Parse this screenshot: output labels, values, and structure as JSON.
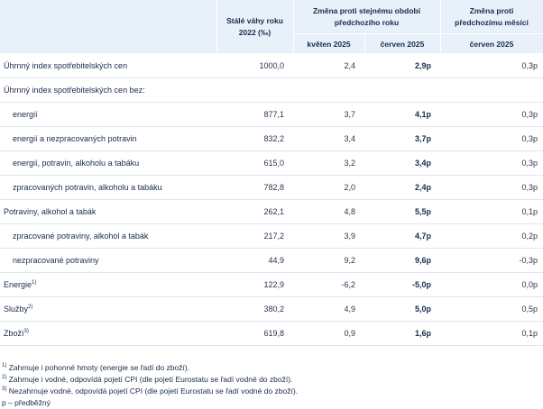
{
  "header": {
    "col_weights": "Stálé váhy roku 2022 (‰)",
    "group_year": "Změna proti stejnému období předchozího roku",
    "group_month": "Změna proti předchozímu měsíci",
    "sub_may": "květen 2025",
    "sub_june_y": "červen 2025",
    "sub_june_m": "červen 2025"
  },
  "rows": [
    {
      "label": "Úhrnný index spotřebitelských cen",
      "sup": "",
      "indent": false,
      "weight": "1000,0",
      "may": "2,4",
      "june": "2,9p",
      "mom": "0,3p"
    },
    {
      "label": "Úhrnný index spotřebitelských cen bez:",
      "sup": "",
      "indent": false,
      "weight": "",
      "may": "",
      "june": "",
      "mom": ""
    },
    {
      "label": "energií",
      "sup": "",
      "indent": true,
      "weight": "877,1",
      "may": "3,7",
      "june": "4,1p",
      "mom": "0,3p"
    },
    {
      "label": "energií a nezpracovaných potravin",
      "sup": "",
      "indent": true,
      "weight": "832,2",
      "may": "3,4",
      "june": "3,7p",
      "mom": "0,3p"
    },
    {
      "label": "energií, potravin, alkoholu a tabáku",
      "sup": "",
      "indent": true,
      "weight": "615,0",
      "may": "3,2",
      "june": "3,4p",
      "mom": "0,3p"
    },
    {
      "label": "zpracovaných potravin, alkoholu a tabáku",
      "sup": "",
      "indent": true,
      "weight": "782,8",
      "may": "2,0",
      "june": "2,4p",
      "mom": "0,3p"
    },
    {
      "label": "Potraviny, alkohol a tabák",
      "sup": "",
      "indent": false,
      "weight": "262,1",
      "may": "4,8",
      "june": "5,5p",
      "mom": "0,1p"
    },
    {
      "label": "zpracované potraviny, alkohol a tabák",
      "sup": "",
      "indent": true,
      "weight": "217,2",
      "may": "3,9",
      "june": "4,7p",
      "mom": "0,2p"
    },
    {
      "label": "nezpracované potraviny",
      "sup": "",
      "indent": true,
      "weight": "44,9",
      "may": "9,2",
      "june": "9,6p",
      "mom": "-0,3p"
    },
    {
      "label": "Energie",
      "sup": "1)",
      "indent": false,
      "weight": "122,9",
      "may": "-6,2",
      "june": "-5,0p",
      "mom": "0,0p"
    },
    {
      "label": "Služby",
      "sup": "2)",
      "indent": false,
      "weight": "380,2",
      "may": "4,9",
      "june": "5,0p",
      "mom": "0,5p"
    },
    {
      "label": "Zboží",
      "sup": "3)",
      "indent": false,
      "weight": "619,8",
      "may": "0,9",
      "june": "1,6p",
      "mom": "0,1p"
    }
  ],
  "notes": [
    {
      "sup": "1)",
      "text": " Zahrnuje i pohonné hmoty (energie se řadí do zboží)."
    },
    {
      "sup": "2)",
      "text": " Zahrnuje i vodné, odpovídá pojetí CPI (dle pojetí Eurostatu se řadí vodné do zboží)."
    },
    {
      "sup": "3)",
      "text": " Nezahrnuje vodné, odpovídá pojetí CPI (dle pojetí Eurostatu se řadí vodné do zboží)."
    },
    {
      "sup": "",
      "text": "p – předběžný"
    }
  ]
}
